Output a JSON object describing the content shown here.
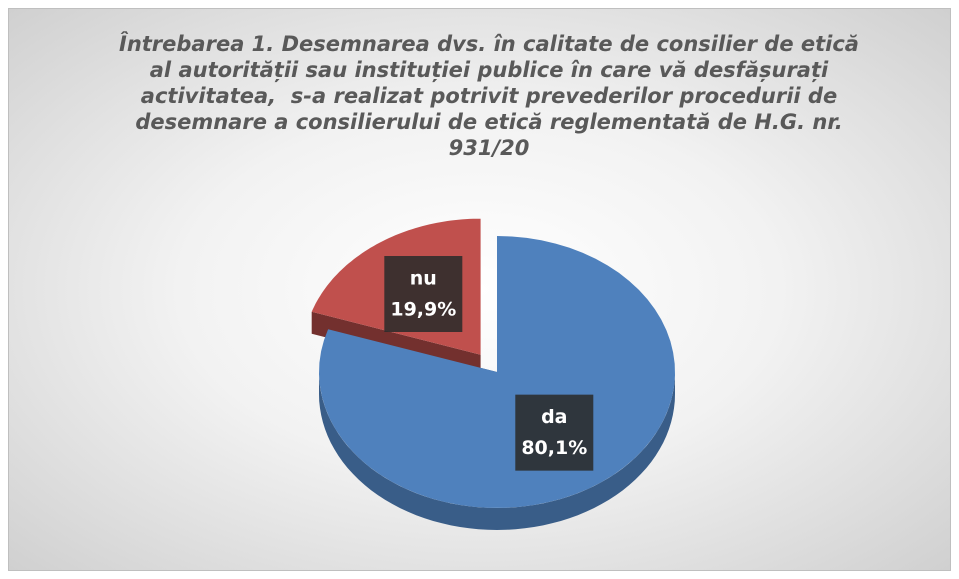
{
  "chart_data": {
    "type": "pie3d",
    "title": "Întrebarea 1. Desemnarea dvs. în calitate de consilier de etică al autorității sau instituției publice în care vă desfășurați activitatea,  s-a realizat potrivit prevederilor procedurii de desemnare a consilierului de etică reglementată de H.G. nr. 931/20",
    "categories": [
      "da",
      "nu"
    ],
    "values": [
      80.1,
      19.9
    ],
    "value_labels": [
      "80,1%",
      "19,9%"
    ],
    "colors": [
      "#4f81bd",
      "#c0504d"
    ],
    "exploded": [
      false,
      true
    ]
  }
}
